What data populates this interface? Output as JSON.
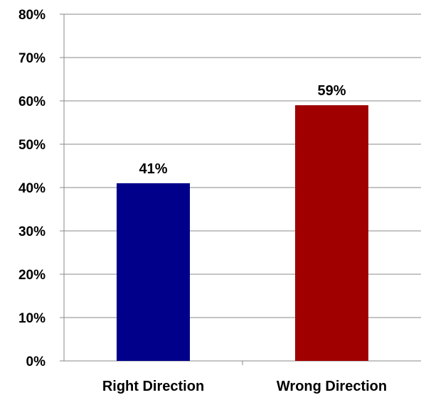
{
  "chart_data": {
    "type": "bar",
    "categories": [
      "Right Direction",
      "Wrong Direction"
    ],
    "values": [
      41,
      59
    ],
    "data_labels": [
      "41%",
      "59%"
    ],
    "colors": [
      "#00008B",
      "#A00000"
    ],
    "ylim": [
      0,
      80
    ],
    "yticks": [
      0,
      10,
      20,
      30,
      40,
      50,
      60,
      70,
      80
    ],
    "ytick_labels": [
      "0%",
      "10%",
      "20%",
      "30%",
      "40%",
      "50%",
      "60%",
      "70%",
      "80%"
    ],
    "grid": true,
    "legend": "none",
    "title": "",
    "xlabel": "",
    "ylabel": ""
  }
}
